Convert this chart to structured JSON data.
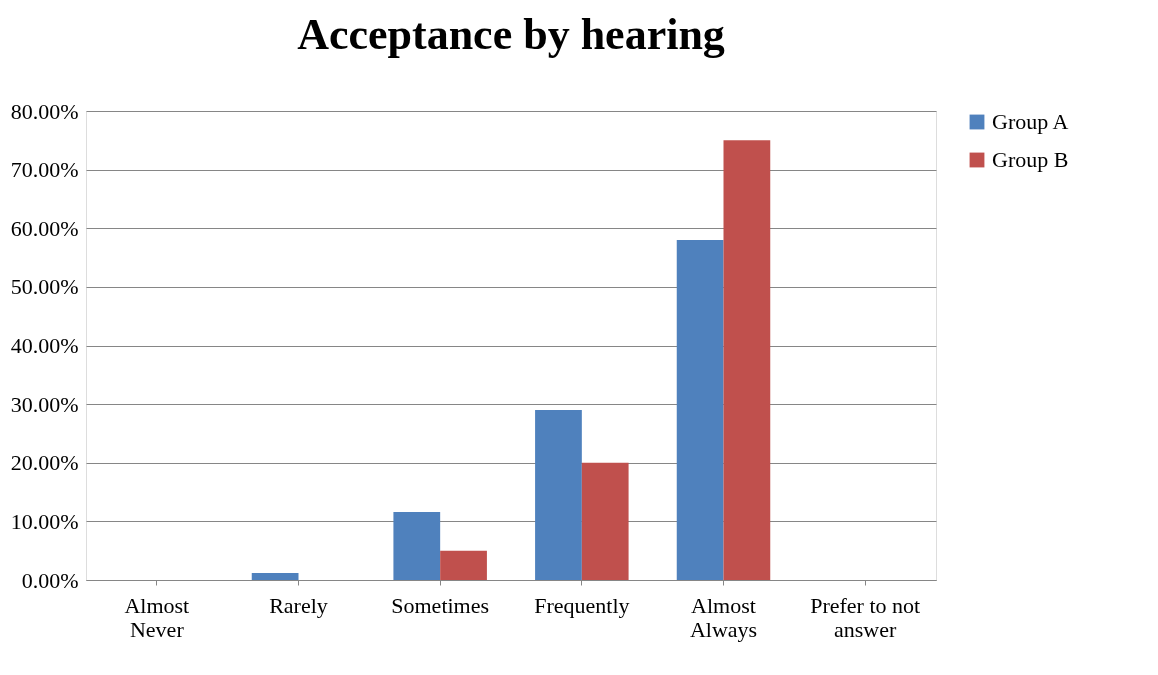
{
  "chart_data": {
    "type": "bar",
    "title": "Acceptance by hearing",
    "categories": [
      "Almost\nNever",
      "Rarely",
      "Sometimes",
      "Frequently",
      "Almost\nAlways",
      "Prefer to not\nanswer"
    ],
    "series": [
      {
        "name": "Group A",
        "color": "#4f81bd",
        "values": [
          0,
          1.2,
          11.6,
          29,
          58,
          0
        ]
      },
      {
        "name": "Group B",
        "color": "#c0504d",
        "values": [
          0,
          0,
          5,
          20,
          75,
          0
        ]
      }
    ],
    "ylim": [
      0,
      80
    ],
    "yticks": [
      {
        "value": 0,
        "label": "0.00%"
      },
      {
        "value": 10,
        "label": "10.00%"
      },
      {
        "value": 20,
        "label": "20.00%"
      },
      {
        "value": 30,
        "label": "30.00%"
      },
      {
        "value": 40,
        "label": "40.00%"
      },
      {
        "value": 50,
        "label": "50.00%"
      },
      {
        "value": 60,
        "label": "60.00%"
      },
      {
        "value": 70,
        "label": "70.00%"
      },
      {
        "value": 80,
        "label": "80.00%"
      }
    ],
    "grid": "y",
    "legend": "right"
  }
}
